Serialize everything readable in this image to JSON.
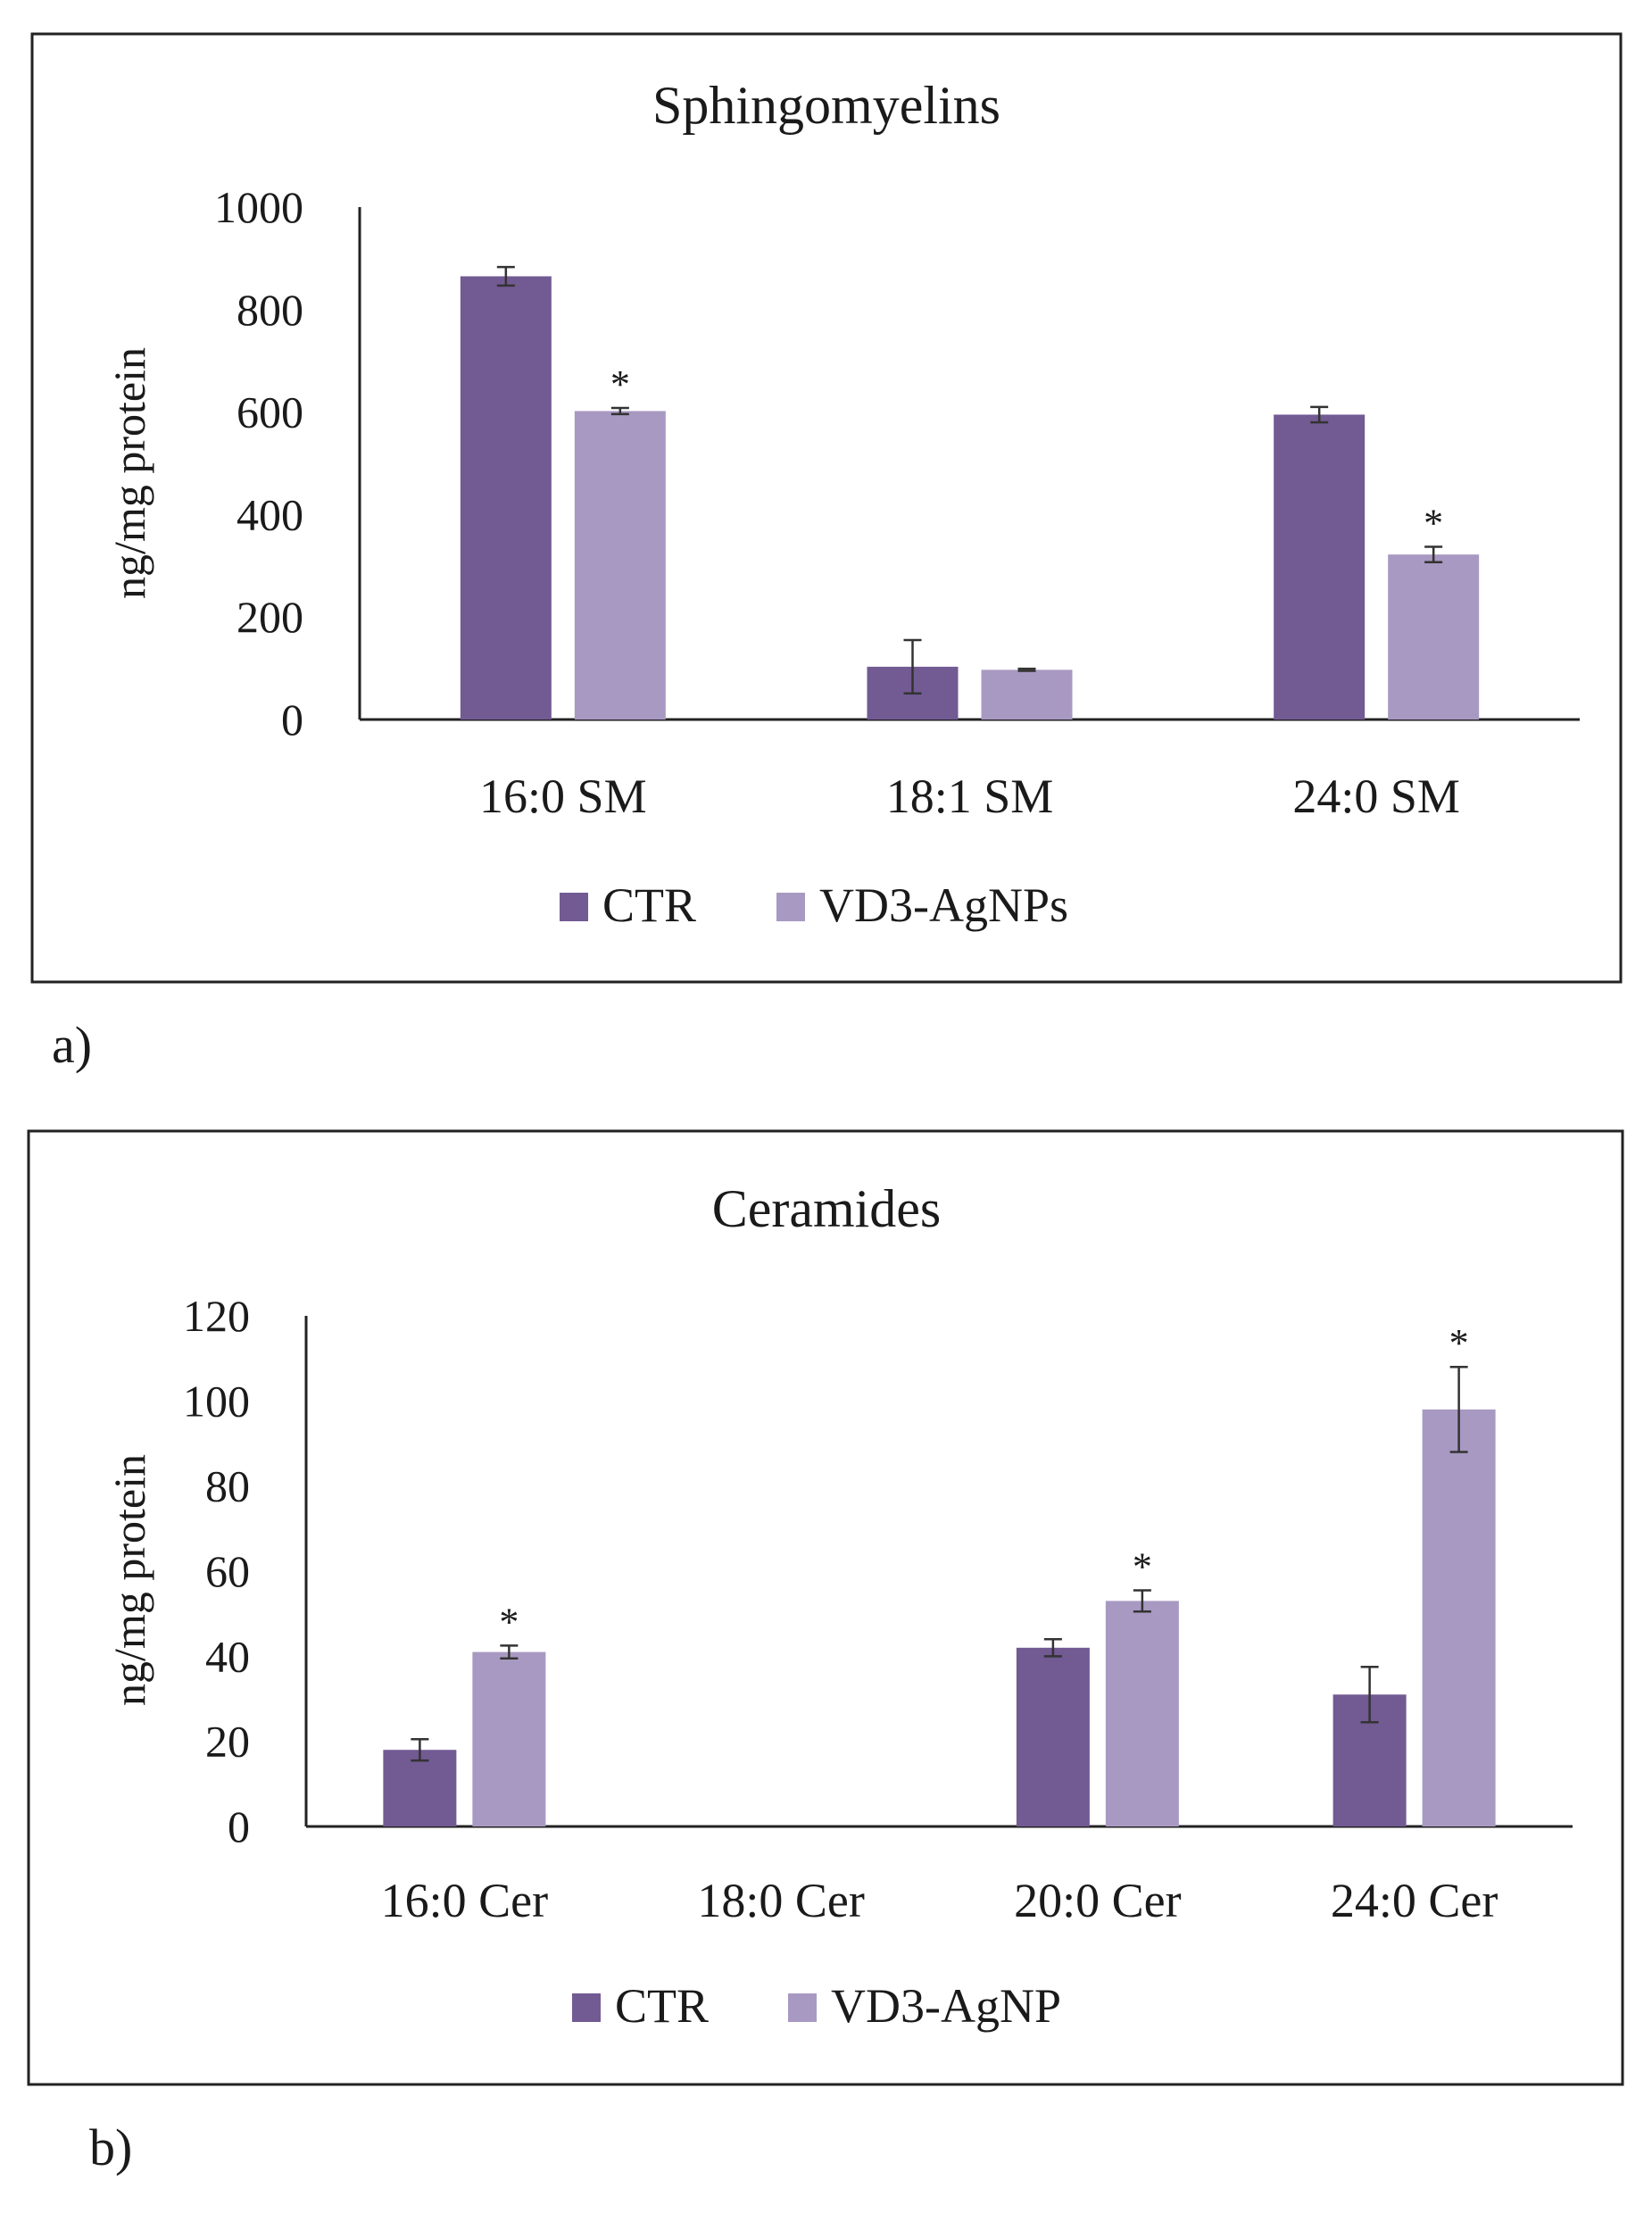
{
  "chart_data": [
    {
      "type": "bar",
      "panel_label": "a)",
      "title": "Sphingomyelins",
      "xlabel": "",
      "ylabel": "ng/mg protein",
      "ylim": [
        0,
        1000
      ],
      "yticks": [
        0,
        200,
        400,
        600,
        800,
        1000
      ],
      "grid": false,
      "legend_position": "bottom",
      "categories": [
        "16:0 SM",
        "18:1 SM",
        "24:0 SM"
      ],
      "series": [
        {
          "name": "CTR",
          "color": "#725a93",
          "values": [
            865,
            103,
            595
          ],
          "errors": [
            18,
            52,
            15
          ],
          "significance": [
            "",
            "",
            ""
          ]
        },
        {
          "name": "VD3-AgNPs",
          "color": "#a899c2",
          "values": [
            602,
            97,
            322
          ],
          "errors": [
            6,
            2,
            15
          ],
          "significance": [
            "*",
            "",
            "*"
          ]
        }
      ]
    },
    {
      "type": "bar",
      "panel_label": "b)",
      "title": "Ceramides",
      "xlabel": "",
      "ylabel": "ng/mg protein",
      "ylim": [
        0,
        120
      ],
      "yticks": [
        0,
        20,
        40,
        60,
        80,
        100,
        120
      ],
      "grid": false,
      "legend_position": "bottom",
      "categories": [
        "16:0 Cer",
        "18:0 Cer",
        "20:0 Cer",
        "24:0 Cer"
      ],
      "series": [
        {
          "name": "CTR",
          "color": "#725a93",
          "values": [
            18,
            0,
            42,
            31
          ],
          "errors": [
            2.5,
            0,
            2,
            6.5
          ],
          "significance": [
            "",
            "",
            "",
            ""
          ]
        },
        {
          "name": "VD3-AgNP",
          "color": "#a899c2",
          "values": [
            41,
            0,
            53,
            98
          ],
          "errors": [
            1.5,
            0,
            2.5,
            10
          ],
          "significance": [
            "*",
            "",
            "*",
            "*"
          ]
        }
      ]
    }
  ]
}
